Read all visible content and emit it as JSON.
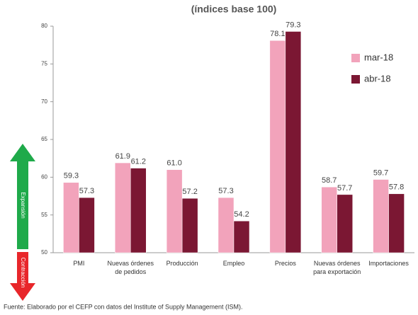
{
  "chart_data": {
    "type": "bar",
    "title": "(índices base 100)",
    "categories": [
      "PMI",
      "Nuevas órdenes de pedidos",
      "Producción",
      "Empleo",
      "Precios",
      "Nuevas órdenes para exportación",
      "Importaciones"
    ],
    "series": [
      {
        "name": "mar-18",
        "color": "#f2a3bb",
        "values": [
          59.3,
          61.9,
          61.0,
          57.3,
          78.1,
          58.7,
          59.7
        ],
        "value_labels": [
          "59.3",
          "61.9",
          "61.0",
          "57.3",
          "78.1",
          "58.7",
          "59.7"
        ]
      },
      {
        "name": "abr-18",
        "color": "#7b1733",
        "values": [
          57.3,
          61.2,
          57.2,
          54.2,
          79.3,
          57.7,
          57.8
        ],
        "value_labels": [
          "57.3",
          "61.2",
          "57.2",
          "54.2",
          "79.3",
          "57.7",
          "57.8"
        ]
      }
    ],
    "ylim": [
      50,
      80
    ],
    "yticks": [
      50,
      55,
      60,
      65,
      70,
      75,
      80
    ],
    "legend": "upper right",
    "annotations": [
      "Expansión",
      "Contracción"
    ],
    "source": "Fuente: Elaborado por el CEFP con datos del Institute of Supply Management (ISM)."
  }
}
